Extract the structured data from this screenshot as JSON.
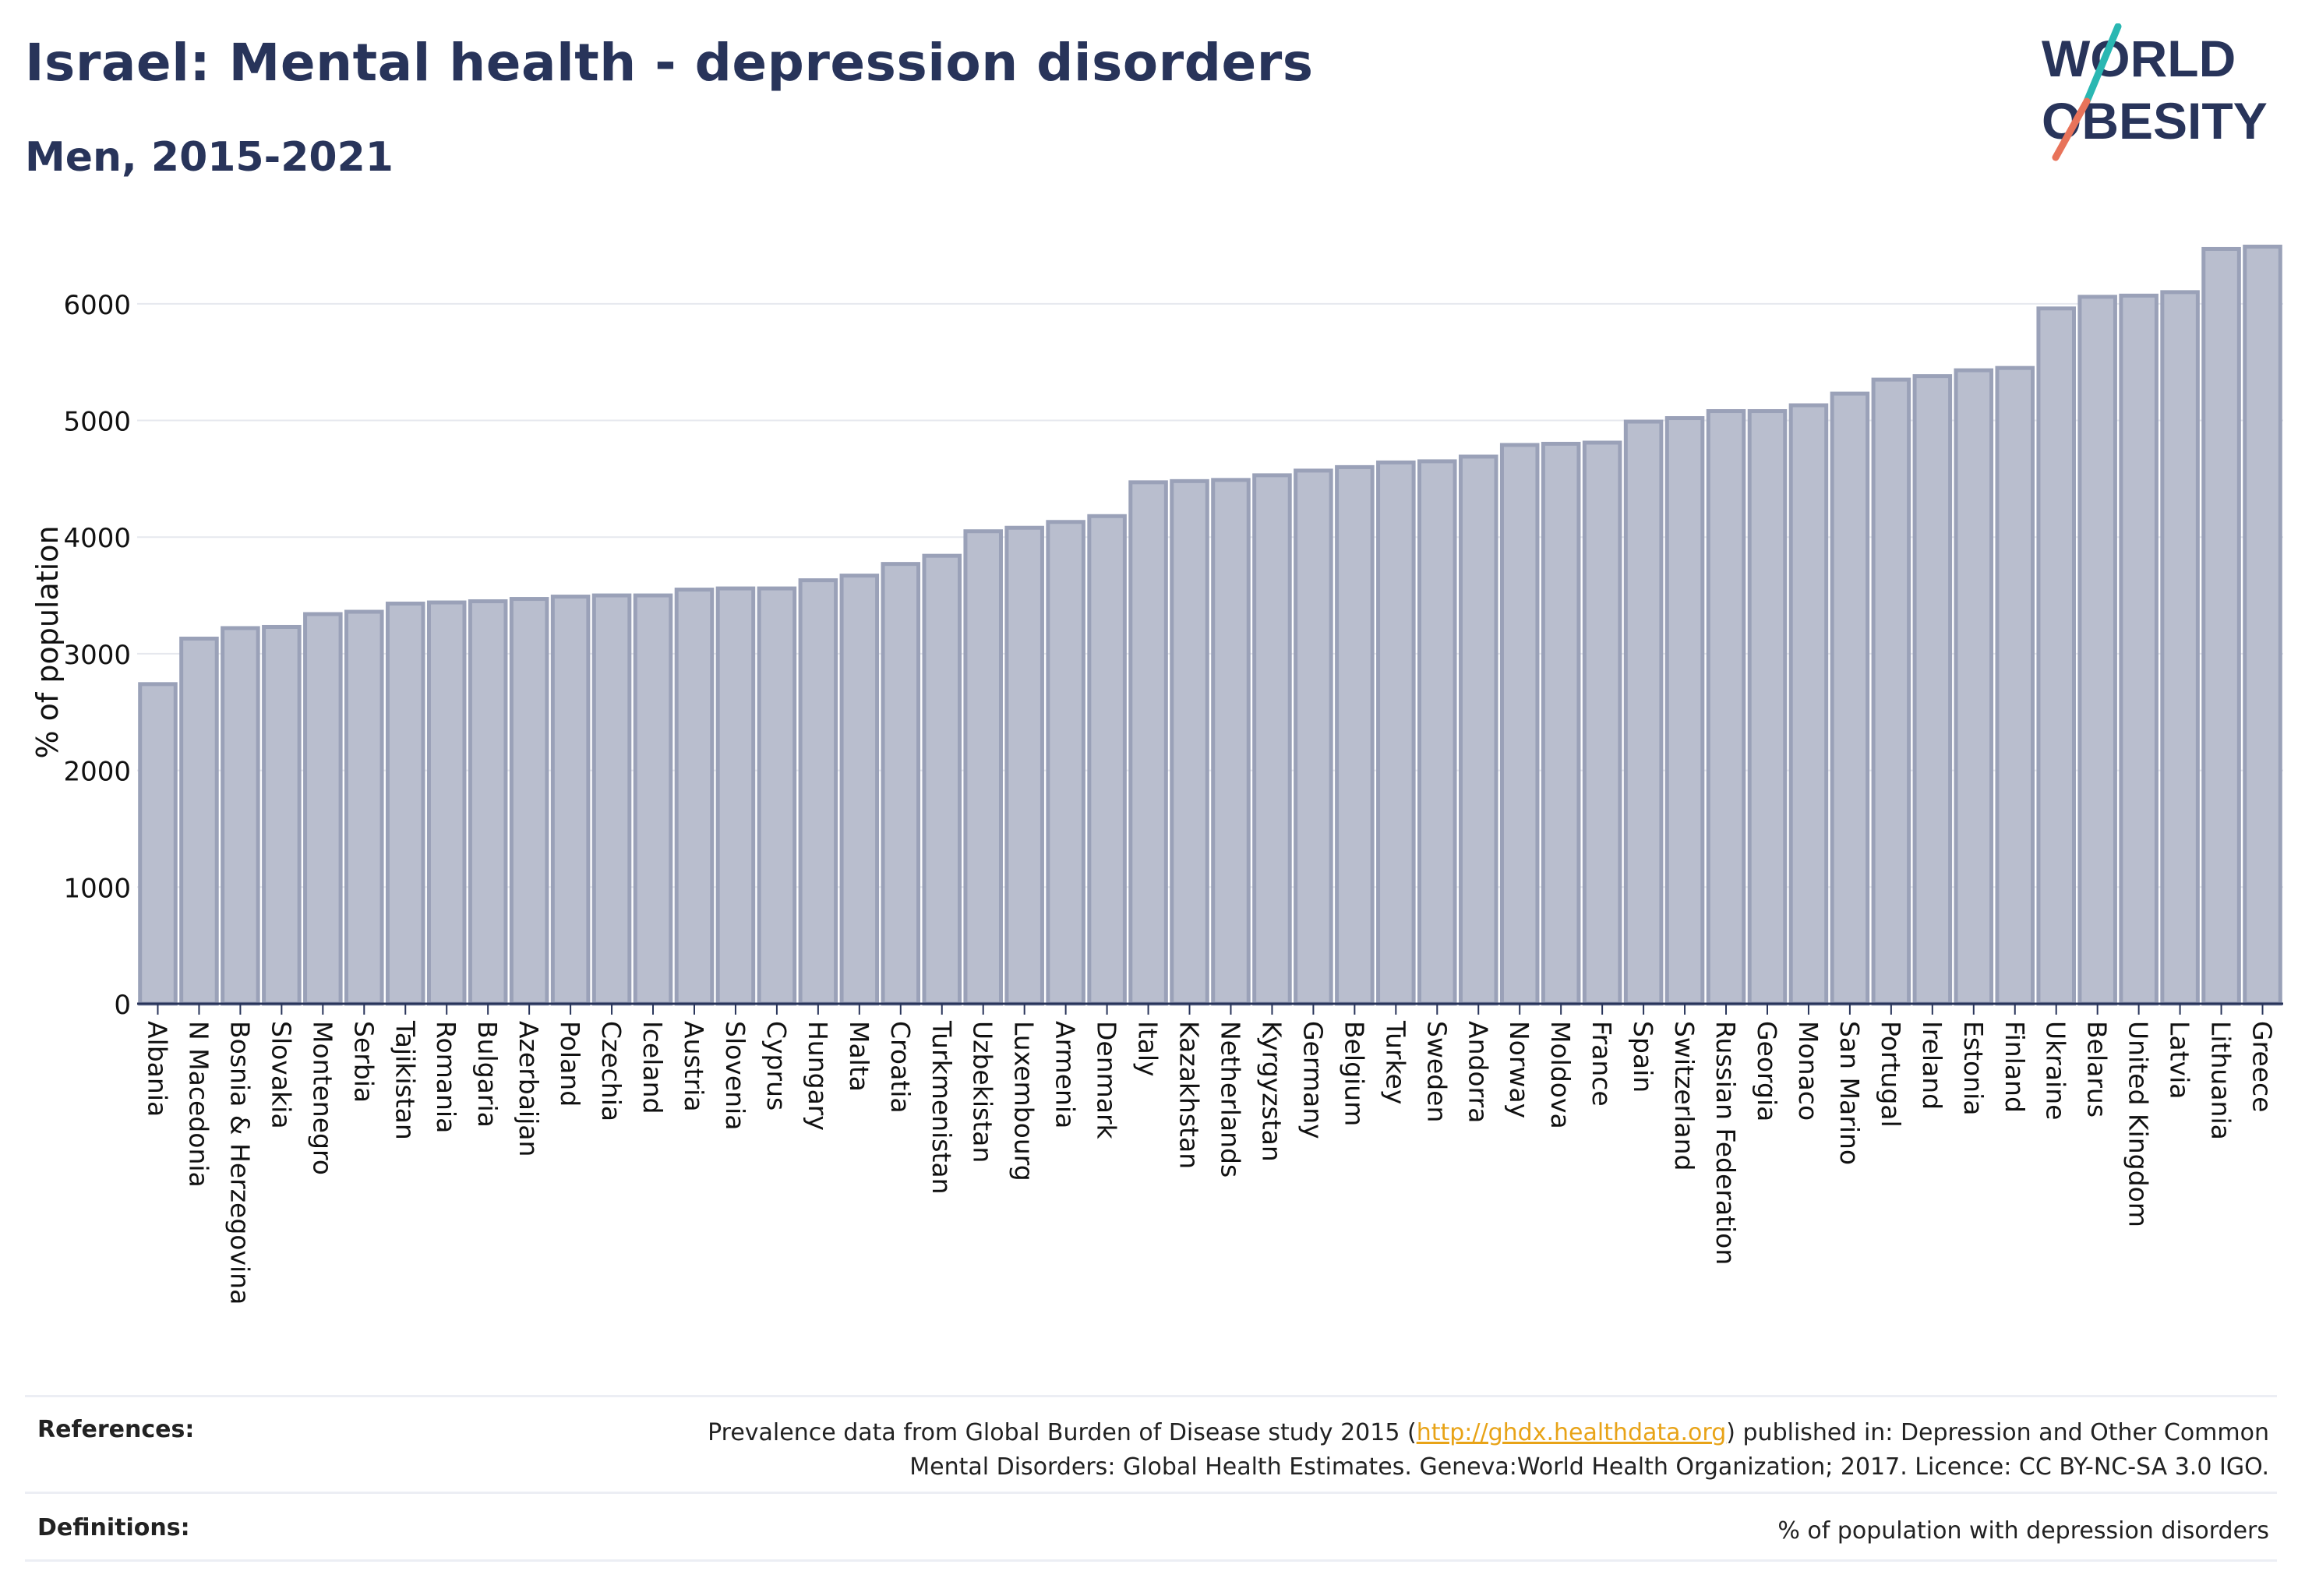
{
  "header": {
    "title": "Israel: Mental health - depression disorders",
    "subtitle": "Men, 2015-2021"
  },
  "logo": {
    "line1": "WORLD",
    "line2": "OBESITY",
    "accent_colors": [
      "#2ab7b2",
      "#e8735a"
    ]
  },
  "chart_data": {
    "type": "bar",
    "title": "",
    "xlabel": "",
    "ylabel": "% of population",
    "ylim": [
      0,
      6600
    ],
    "yticks": [
      0,
      1000,
      2000,
      3000,
      4000,
      5000,
      6000
    ],
    "grid": true,
    "bar_color": "#b9bece",
    "bar_edge_color": "#9aa1b8",
    "categories": [
      "Albania",
      "N Macedonia",
      "Bosnia & Herzegovina",
      "Slovakia",
      "Montenegro",
      "Serbia",
      "Tajikistan",
      "Romania",
      "Bulgaria",
      "Azerbaijan",
      "Poland",
      "Czechia",
      "Iceland",
      "Austria",
      "Slovenia",
      "Cyprus",
      "Hungary",
      "Malta",
      "Croatia",
      "Turkmenistan",
      "Uzbekistan",
      "Luxembourg",
      "Armenia",
      "Denmark",
      "Italy",
      "Kazakhstan",
      "Netherlands",
      "Kyrgyzstan",
      "Germany",
      "Belgium",
      "Turkey",
      "Sweden",
      "Andorra",
      "Norway",
      "Moldova",
      "France",
      "Spain",
      "Switzerland",
      "Russian Federation",
      "Georgia",
      "Monaco",
      "San Marino",
      "Portugal",
      "Ireland",
      "Estonia",
      "Finland",
      "Ukraine",
      "Belarus",
      "United Kingdom",
      "Latvia",
      "Lithuania",
      "Greece"
    ],
    "values": [
      2740,
      3130,
      3220,
      3230,
      3340,
      3360,
      3430,
      3440,
      3450,
      3470,
      3490,
      3500,
      3500,
      3550,
      3560,
      3560,
      3630,
      3670,
      3770,
      3840,
      4050,
      4080,
      4130,
      4180,
      4470,
      4480,
      4490,
      4530,
      4570,
      4600,
      4640,
      4650,
      4690,
      4790,
      4800,
      4810,
      4990,
      5020,
      5080,
      5080,
      5130,
      5230,
      5350,
      5380,
      5430,
      5450,
      5960,
      6060,
      6070,
      6100,
      6470,
      6490
    ]
  },
  "references": {
    "label": "References:",
    "text_before_link": "Prevalence data from Global Burden of Disease study 2015 (",
    "link": "http://ghdx.healthdata.org",
    "text_after_link": ") published in: Depression and Other Common",
    "line2": "Mental Disorders: Global Health Estimates. Geneva:World Health Organization; 2017. Licence: CC BY-NC-SA 3.0 IGO."
  },
  "definitions": {
    "label": "Definitions:",
    "text": "% of population with depression disorders"
  }
}
